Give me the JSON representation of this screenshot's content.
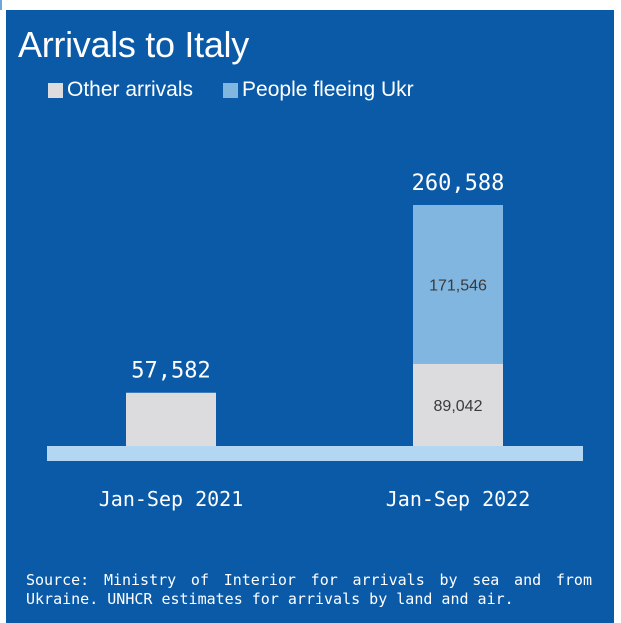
{
  "chart_data": {
    "type": "bar",
    "title": "Arrivals to Italy",
    "categories": [
      "Jan-Sep 2021",
      "Jan-Sep 2022"
    ],
    "series": [
      {
        "name": "Other arrivals",
        "values": [
          57582,
          89042
        ],
        "value_labels": [
          "",
          "89,042"
        ],
        "color": "#dcdcdf"
      },
      {
        "name": "People fleeing Ukr",
        "values": [
          0,
          171546
        ],
        "value_labels": [
          "",
          "171,546"
        ],
        "color": "#80b6e0"
      }
    ],
    "totals": [
      57582,
      260588
    ],
    "total_labels": [
      "57,582",
      "260,588"
    ],
    "stacked": true,
    "ylim": [
      0,
      260588
    ],
    "grid": false,
    "legend_position": "top-left",
    "baseline_color": "#b3d6f2",
    "background_color": "#0a5aa8"
  },
  "source_note": "Source: Ministry of Interior for arrivals by sea and from Ukraine. UNHCR estimates for arrivals by land and air."
}
